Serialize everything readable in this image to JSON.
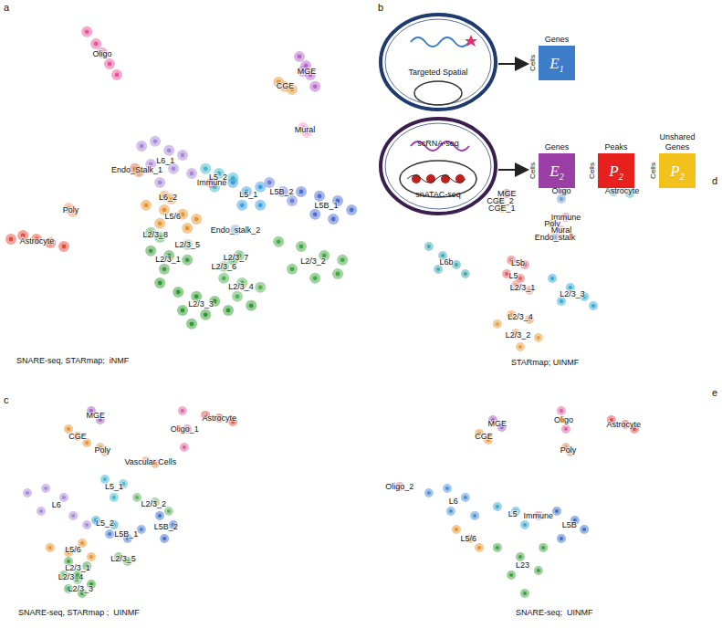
{
  "chart_data": [
    {
      "type": "scatter",
      "panel": "a",
      "title": "SNARE-seq, STARmap;  iNMF",
      "tick_labels": false,
      "xlim": [
        0,
        100
      ],
      "ylim": [
        0,
        100
      ],
      "series": [
        {
          "name": "Oligo",
          "color": "#e8559c",
          "x": [
            23.8,
            26.3,
            28,
            30,
            32
          ],
          "y": [
            91.3,
            88,
            85.5,
            82.5,
            79.5
          ]
        },
        {
          "name": "MGE",
          "color": "#b565c8",
          "x": [
            82,
            83.8,
            85,
            86.3,
            83
          ],
          "y": [
            84.5,
            82,
            79.5,
            76.3,
            80.5
          ]
        },
        {
          "name": "CGE",
          "color": "#e8963a",
          "x": [
            76.3,
            78,
            80
          ],
          "y": [
            77.5,
            76.3,
            75.5
          ]
        },
        {
          "name": "Mural",
          "color": "#f0a0c8",
          "x": [
            83,
            84
          ],
          "y": [
            65,
            63.8
          ]
        },
        {
          "name": "Astrocyte",
          "color": "#e84a3a",
          "x": [
            3,
            6.3,
            10,
            13.8,
            17.5
          ],
          "y": [
            34.5,
            35.5,
            34.5,
            33.5,
            32.5
          ]
        },
        {
          "name": "Poly",
          "color": "#e8a070",
          "x": [
            18.8,
            20
          ],
          "y": [
            43,
            42
          ]
        },
        {
          "name": "Endo_Stalk_1",
          "color": "#d87040",
          "x": [
            37,
            38
          ],
          "y": [
            53.8,
            53
          ]
        },
        {
          "name": "L6_1",
          "color": "#a888d8",
          "x": [
            38.8,
            42.5,
            46.3,
            50,
            41.3,
            47.5,
            52.5,
            43.8
          ],
          "y": [
            60,
            61.3,
            58.8,
            57.5,
            55,
            53.8,
            52.5,
            50
          ]
        },
        {
          "name": "L6_2",
          "color": "#e8a050",
          "x": [
            45,
            47
          ],
          "y": [
            46.3,
            45.5
          ]
        },
        {
          "name": "L5/6",
          "color": "#e8942c",
          "x": [
            40,
            45,
            50,
            43.8,
            51.3,
            53.8
          ],
          "y": [
            43.8,
            42.5,
            41.3,
            38.8,
            37.5,
            40
          ]
        },
        {
          "name": "L5_2",
          "color": "#40b8c8",
          "x": [
            56.3,
            60,
            63.8,
            58.8
          ],
          "y": [
            53.8,
            52.5,
            51.3,
            48.8
          ]
        },
        {
          "name": "Immune",
          "color": "#e06090",
          "x": [
            58
          ],
          "y": [
            50
          ]
        },
        {
          "name": "L5_1",
          "color": "#3a9ee0",
          "x": [
            63.8,
            67.5,
            71.3,
            66.3,
            71.3
          ],
          "y": [
            50,
            47.5,
            48.8,
            43.8,
            43.8
          ]
        },
        {
          "name": "L5B_2",
          "color": "#6a7ed8",
          "x": [
            73.8,
            77.5,
            80
          ],
          "y": [
            50,
            47.5,
            45
          ]
        },
        {
          "name": "L5B_1",
          "color": "#4a6ed0",
          "x": [
            82.5,
            87.5,
            92.5,
            96.3,
            86.3,
            91.3
          ],
          "y": [
            47.5,
            46.3,
            45,
            42.5,
            41.3,
            40
          ]
        },
        {
          "name": "L2/3_8",
          "color": "#58b060",
          "x": [
            41.3,
            43.8
          ],
          "y": [
            36.3,
            35
          ]
        },
        {
          "name": "L2/3_5",
          "color": "#80c080",
          "x": [
            51.3
          ],
          "y": [
            33
          ]
        },
        {
          "name": "Endo_stalk_2",
          "color": "#90b0d0",
          "x": [
            64.5
          ],
          "y": [
            37
          ]
        },
        {
          "name": "L2/3_7",
          "color": "#50a870",
          "x": [
            63.8,
            65.5
          ],
          "y": [
            28.8,
            30
          ]
        },
        {
          "name": "L2/3_6",
          "color": "#68b868",
          "x": [
            61.3
          ],
          "y": [
            27
          ]
        },
        {
          "name": "L2/3_2",
          "color": "#44a844",
          "x": [
            76.3,
            82.5,
            88.8,
            93.8,
            80,
            86.3,
            92.5
          ],
          "y": [
            33.8,
            32.5,
            30,
            28.8,
            26.3,
            23.8,
            25
          ]
        },
        {
          "name": "L2/3_1",
          "color": "#3c9c3c",
          "x": [
            41.3,
            46.3,
            51.3,
            45
          ],
          "y": [
            31.3,
            30,
            28.8,
            26.3
          ]
        },
        {
          "name": "L2/3_4",
          "color": "#52b052",
          "x": [
            61.3,
            66.3,
            71.3,
            65
          ],
          "y": [
            23.8,
            22.5,
            21.3,
            18.8
          ]
        },
        {
          "name": "L2/3_3",
          "color": "#2e9a2e",
          "x": [
            43.8,
            48.8,
            53.8,
            58.8,
            50,
            56.3,
            62.5,
            68.8,
            52.5
          ],
          "y": [
            22.5,
            20,
            18.8,
            17.5,
            15,
            13.8,
            15,
            16.3,
            11.3
          ]
        }
      ]
    },
    {
      "type": "scatter",
      "panel": "d",
      "title": "STARmap; UINMF",
      "tick_labels": false,
      "xlim": [
        0,
        100
      ],
      "ylim": [
        0,
        100
      ],
      "series": [
        {
          "name": "MGE",
          "color": "#c05080",
          "x": [
            38.1
          ],
          "y": [
            86.8
          ]
        },
        {
          "name": "CGE_2",
          "color": "#e07040",
          "x": [
            36.2
          ],
          "y": [
            82.9
          ]
        },
        {
          "name": "CGE_1",
          "color": "#d89030",
          "x": [
            36.7
          ],
          "y": [
            79
          ]
        },
        {
          "name": "Oligo",
          "color": "#6aa0d0",
          "x": [
            53,
            54.6,
            53.8
          ],
          "y": [
            92.7,
            87.8,
            83.9
          ]
        },
        {
          "name": "Astrocyte",
          "color": "#40b0c0",
          "x": [
            68.8,
            71.4,
            73.5
          ],
          "y": [
            87.8,
            90.2,
            86.8
          ]
        },
        {
          "name": "Immune",
          "color": "#e06090",
          "x": [
            55.1
          ],
          "y": [
            74.1
          ]
        },
        {
          "name": "Poly",
          "color": "#d8a060",
          "x": [
            51.2
          ],
          "y": [
            70.7
          ]
        },
        {
          "name": "Mural",
          "color": "#e090b0",
          "x": [
            53.8
          ],
          "y": [
            67.3
          ]
        },
        {
          "name": "Endo_stalk",
          "color": "#a0a0d0",
          "x": [
            52
          ],
          "y": [
            63.4
          ]
        },
        {
          "name": "L6b",
          "color": "#40a8b0",
          "x": [
            15.7,
            19.7,
            23.6,
            18.4,
            26.2
          ],
          "y": [
            58.5,
            53.7,
            48.8,
            46.3,
            43.9
          ]
        },
        {
          "name": "L5b",
          "color": "#e06070",
          "x": [
            39.4,
            43.3
          ],
          "y": [
            51.2,
            48.8
          ]
        },
        {
          "name": "L5",
          "color": "#e05a5a",
          "x": [
            38.1,
            42
          ],
          "y": [
            43.9,
            41.5
          ]
        },
        {
          "name": "L2/3_1",
          "color": "#e89080",
          "x": [
            40.7,
            44.6
          ],
          "y": [
            38,
            35.1
          ]
        },
        {
          "name": "L2/3_3",
          "color": "#30a8d8",
          "x": [
            51.2,
            56.4,
            60.4,
            53.8,
            63
          ],
          "y": [
            41.5,
            36.6,
            31.7,
            29.3,
            26.8
          ]
        },
        {
          "name": "L2/3_4",
          "color": "#e89040",
          "x": [
            39.4,
            44.6
          ],
          "y": [
            22,
            19.5
          ]
        },
        {
          "name": "L2/3_2",
          "color": "#e8a040",
          "x": [
            35.4,
            40.7,
            47.2,
            42
          ],
          "y": [
            17.1,
            12.2,
            9.8,
            4.9
          ]
        }
      ]
    },
    {
      "type": "scatter",
      "panel": "c",
      "title": "SNARE-seq, STARmap ;  UINMF",
      "tick_labels": false,
      "xlim": [
        0,
        100
      ],
      "ylim": [
        0,
        100
      ],
      "series": [
        {
          "name": "MGE",
          "color": "#a060c0",
          "x": [
            25.3,
            27.8
          ],
          "y": [
            91.5,
            87.2
          ]
        },
        {
          "name": "CGE",
          "color": "#e89030",
          "x": [
            19,
            21.5,
            24.1
          ],
          "y": [
            83,
            79.6,
            76.6
          ]
        },
        {
          "name": "Oligo_1",
          "color": "#e060a0",
          "x": [
            50.6,
            51.9,
            51.1
          ],
          "y": [
            91.5,
            83,
            74.5
          ]
        },
        {
          "name": "Astrocyte",
          "color": "#e04848",
          "x": [
            57,
            60.8,
            64.6
          ],
          "y": [
            89.4,
            88.1,
            86.4
          ]
        },
        {
          "name": "Poly",
          "color": "#d8a060",
          "x": [
            27.8,
            29.1
          ],
          "y": [
            74.5,
            72.3
          ]
        },
        {
          "name": "Vascular Cells",
          "color": "#e09060",
          "x": [
            40.5,
            43
          ],
          "y": [
            68.1,
            66.8
          ]
        },
        {
          "name": "L6",
          "color": "#a888d8",
          "x": [
            7.6,
            12.7,
            17.7,
            11.4,
            20.3,
            24.1
          ],
          "y": [
            53.2,
            55.3,
            51.1,
            44.7,
            42.6,
            38.3
          ]
        },
        {
          "name": "L5/6",
          "color": "#e8942c",
          "x": [
            13.9,
            19,
            22.8,
            25.3
          ],
          "y": [
            27.7,
            25.5,
            29.8,
            23.4
          ]
        },
        {
          "name": "L5_1",
          "color": "#40b8d0",
          "x": [
            29.1,
            34.2,
            31.6
          ],
          "y": [
            59.6,
            57.4,
            51.1
          ]
        },
        {
          "name": "L2/3_2",
          "color": "#60b060",
          "x": [
            38,
            43,
            46.8
          ],
          "y": [
            51.1,
            48.9,
            44.7
          ]
        },
        {
          "name": "L5_2",
          "color": "#30a0c0",
          "x": [
            26.6,
            31.6
          ],
          "y": [
            40.4,
            38.3
          ]
        },
        {
          "name": "L5B_1",
          "color": "#4a80d0",
          "x": [
            30.4,
            35.4,
            39.2
          ],
          "y": [
            34,
            31.9,
            36.2
          ]
        },
        {
          "name": "L5B_2",
          "color": "#3a6ec8",
          "x": [
            44.3,
            48.1,
            45.6
          ],
          "y": [
            42.6,
            38.3,
            31.9
          ]
        },
        {
          "name": "L2/3_5",
          "color": "#58a858",
          "x": [
            32.9,
            35.4
          ],
          "y": [
            23.4,
            21.3
          ]
        },
        {
          "name": "L2/3_1",
          "color": "#40a040",
          "x": [
            19,
            24.1,
            21.5
          ],
          "y": [
            21.3,
            19.1,
            14.9
          ]
        },
        {
          "name": "L2/3_4",
          "color": "#50b050",
          "x": [
            17.7,
            21.5
          ],
          "y": [
            14.9,
            12.8
          ]
        },
        {
          "name": "L2/3_3",
          "color": "#2e9a2e",
          "x": [
            19,
            22.8,
            25.3
          ],
          "y": [
            8.5,
            6.4,
            10.6
          ]
        }
      ]
    },
    {
      "type": "scatter",
      "panel": "e",
      "title": "SNARE-seq;  UINMF",
      "tick_labels": false,
      "xlim": [
        0,
        100
      ],
      "ylim": [
        0,
        100
      ],
      "series": [
        {
          "name": "MGE",
          "color": "#a060c0",
          "x": [
            34.1,
            36.7
          ],
          "y": [
            87.2,
            83.8
          ]
        },
        {
          "name": "CGE",
          "color": "#e89030",
          "x": [
            30.2,
            32.8
          ],
          "y": [
            80.9,
            77.9
          ]
        },
        {
          "name": "Oligo",
          "color": "#e060a0",
          "x": [
            53.8,
            55.1
          ],
          "y": [
            91.5,
            83
          ]
        },
        {
          "name": "Poly",
          "color": "#d89060",
          "x": [
            55.1,
            56.4
          ],
          "y": [
            74.5,
            72.3
          ]
        },
        {
          "name": "Astrocyte",
          "color": "#e04848",
          "x": [
            68.2,
            72.2,
            74.8
          ],
          "y": [
            87.2,
            85.1,
            83
          ]
        },
        {
          "name": "Oligo_2",
          "color": "#e060a0",
          "x": [
            7.3
          ],
          "y": [
            56.2
          ]
        },
        {
          "name": "L6",
          "color": "#4a90d8",
          "x": [
            15.7,
            21,
            26.2,
            22,
            28.9
          ],
          "y": [
            53.2,
            55.3,
            51.1,
            44.7,
            42.6
          ]
        },
        {
          "name": "L5",
          "color": "#40a8d0",
          "x": [
            35.4,
            40.7,
            43.3
          ],
          "y": [
            46.8,
            44.7,
            38.3
          ]
        },
        {
          "name": "Immune",
          "color": "#e06090",
          "x": [
            47.2
          ],
          "y": [
            42.6
          ]
        },
        {
          "name": "L5B",
          "color": "#3a70c8",
          "x": [
            52.5,
            57.7,
            53.8,
            60.4
          ],
          "y": [
            44.7,
            40.4,
            31.9,
            36.2
          ]
        },
        {
          "name": "L5/6",
          "color": "#e8942c",
          "x": [
            23.6,
            27.6,
            30.2
          ],
          "y": [
            36.2,
            31.9,
            27.7
          ]
        },
        {
          "name": "L23",
          "color": "#40a040",
          "x": [
            35.4,
            42,
            48.6,
            39.4,
            47.2,
            43.3
          ],
          "y": [
            27.7,
            23.4,
            27.7,
            14.9,
            17,
            6.4
          ]
        }
      ]
    }
  ],
  "diagram": {
    "panel": "b",
    "cells": [
      {
        "labels": [
          "Targeted Spatial"
        ],
        "matrices": [
          {
            "symbol": "E",
            "sub": "1",
            "cols": "Genes",
            "rows": "Cells",
            "color": "#3d7cc9"
          }
        ]
      },
      {
        "labels": [
          "scRNA-seq",
          "snATAC-seq"
        ],
        "matrices": [
          {
            "symbol": "E",
            "sub": "2",
            "cols": "Genes",
            "rows": "Cells",
            "color": "#9b3fa6"
          },
          {
            "symbol": "P",
            "sub": "2",
            "cols": "Peaks",
            "rows": "Cells",
            "color": "#e8201e"
          },
          {
            "symbol": "P",
            "sub": "2",
            "cols": "Unshared Genes",
            "rows": "Cells",
            "color": "#f2c21b"
          }
        ]
      }
    ]
  }
}
